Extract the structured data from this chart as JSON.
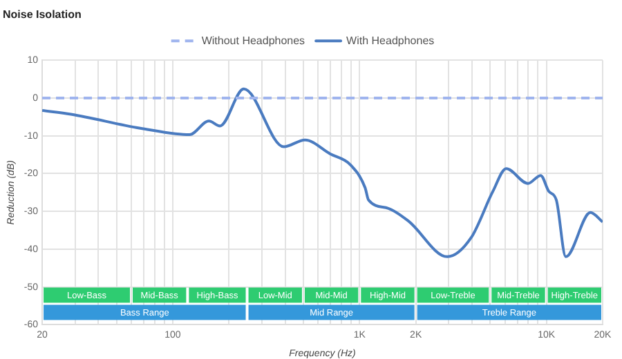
{
  "chart_data": {
    "type": "line",
    "title": "Noise Isolation",
    "xlabel": "Frequency (Hz)",
    "ylabel": "Reduction (dB)",
    "log": "x",
    "grid": true,
    "legend": "top",
    "marker": "none",
    "xlim": [
      20,
      20000
    ],
    "ylim": [
      -60,
      10
    ],
    "xticks": [
      20,
      {
        "value": 30,
        "label": null
      },
      {
        "value": 40,
        "label": null
      },
      {
        "value": 50,
        "label": null
      },
      {
        "value": 60,
        "label": null
      },
      {
        "value": 70,
        "label": null
      },
      {
        "value": 80,
        "label": null
      },
      {
        "value": 90,
        "label": null
      },
      100,
      {
        "value": 200,
        "label": null
      },
      {
        "value": 300,
        "label": null
      },
      {
        "value": 400,
        "label": null
      },
      {
        "value": 500,
        "label": null
      },
      {
        "value": 600,
        "label": null
      },
      {
        "value": 700,
        "label": null
      },
      {
        "value": 800,
        "label": null
      },
      {
        "value": 900,
        "label": null
      },
      {
        "value": 1000,
        "label": "1K"
      },
      {
        "value": 2000,
        "label": "2K"
      },
      {
        "value": 3000,
        "label": null
      },
      {
        "value": 4000,
        "label": null
      },
      {
        "value": 5000,
        "label": null
      },
      {
        "value": 6000,
        "label": null
      },
      {
        "value": 7000,
        "label": null
      },
      {
        "value": 8000,
        "label": null
      },
      {
        "value": 9000,
        "label": null
      },
      {
        "value": 10000,
        "label": "10K"
      },
      {
        "value": 20000,
        "label": "20K"
      }
    ],
    "yticks": [
      -60,
      -50,
      -40,
      -30,
      -20,
      -10,
      0,
      10
    ],
    "series": [
      {
        "name": "Without Headphones",
        "color": "#9fb4ee",
        "line_style": "dashed",
        "x": [
          20,
          20000
        ],
        "values": [
          0,
          0
        ]
      },
      {
        "name": "With Headphones",
        "color": "#4a7bc0",
        "line_style": "solid",
        "x": [
          20,
          28.5,
          67,
          123,
          156,
          179,
          240,
          393,
          510,
          697,
          890,
          1070,
          1117,
          1425,
          1830,
          2950,
          3950,
          5170,
          6090,
          7970,
          9320,
          10300,
          11300,
          12700,
          17200,
          20000
        ],
        "values": [
          -3.3,
          -4.3,
          -8,
          -9.7,
          -6.1,
          -7.4,
          2.4,
          -12.9,
          -11.1,
          -14.8,
          -17.6,
          -23.7,
          -27,
          -29.2,
          -32.6,
          -42,
          -37,
          -24.7,
          -18.7,
          -22.6,
          -20.5,
          -24.7,
          -27,
          -42,
          -30.3,
          -32.8
        ]
      }
    ],
    "bands": [
      {
        "axis": "x",
        "from": 20,
        "to": 60,
        "label": "Low-Bass",
        "color": "#2ecc71"
      },
      {
        "axis": "x",
        "from": 60,
        "to": 120,
        "label": "Mid-Bass",
        "color": "#2ecc71"
      },
      {
        "axis": "x",
        "from": 120,
        "to": 250,
        "label": "High-Bass",
        "color": "#2ecc71"
      },
      {
        "axis": "x",
        "from": 250,
        "to": 500,
        "label": "Low-Mid",
        "color": "#2ecc71"
      },
      {
        "axis": "x",
        "from": 500,
        "to": 1000,
        "label": "Mid-Mid",
        "color": "#2ecc71"
      },
      {
        "axis": "x",
        "from": 1000,
        "to": 2000,
        "label": "High-Mid",
        "color": "#2ecc71"
      },
      {
        "axis": "x",
        "from": 2000,
        "to": 5000,
        "label": "Low-Treble",
        "color": "#2ecc71"
      },
      {
        "axis": "x",
        "from": 5000,
        "to": 10000,
        "label": "Mid-Treble",
        "color": "#2ecc71"
      },
      {
        "axis": "x",
        "from": 10000,
        "to": 20000,
        "label": "High-Treble",
        "color": "#2ecc71"
      },
      {
        "axis": "x",
        "from": 20,
        "to": 250,
        "label": "Bass Range",
        "color": "#3498db"
      },
      {
        "axis": "x",
        "from": 250,
        "to": 2000,
        "label": "Mid Range",
        "color": "#3498db"
      },
      {
        "axis": "x",
        "from": 2000,
        "to": 20000,
        "label": "Treble Range",
        "color": "#3498db"
      }
    ]
  }
}
